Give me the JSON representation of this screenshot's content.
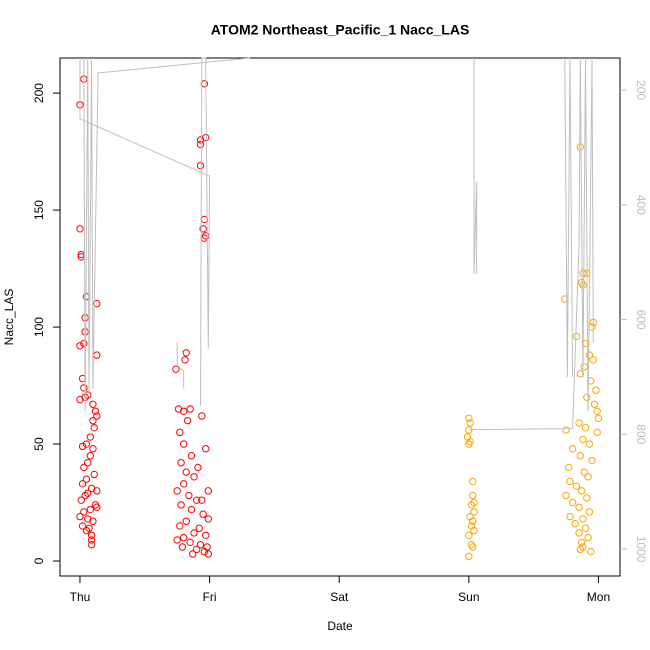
{
  "chart_data": {
    "type": "scatter",
    "title": "ATOM2 Northeast_Pacific_1 Nacc_LAS",
    "xlabel": "Date",
    "ylabel": "Nacc_LAS",
    "xlim": [
      -0.154,
      4.166
    ],
    "xticks": [
      {
        "value": 0,
        "label": "Thu"
      },
      {
        "value": 1,
        "label": "Fri"
      },
      {
        "value": 2,
        "label": "Sat"
      },
      {
        "value": 3,
        "label": "Sun"
      },
      {
        "value": 4,
        "label": "Mon"
      }
    ],
    "ylim": [
      -6.4,
      215
    ],
    "yticks": [
      0,
      50,
      100,
      150,
      200
    ],
    "y2lim": [
      1047,
      144
    ],
    "y2ticks": [
      200,
      400,
      600,
      800,
      1000
    ],
    "y2color": "#bebebe",
    "series": [
      {
        "color": "#ff0000",
        "x": [
          0.0,
          0.01,
          0.01,
          0.0,
          0.03,
          0.05,
          0.13,
          0.04,
          0.04,
          0.03,
          0.0,
          0.13,
          0.02,
          0.03,
          0.04,
          0.0,
          0.06,
          0.1,
          0.12,
          0.13,
          0.1,
          0.11,
          0.08,
          0.05,
          0.02,
          0.1,
          0.08,
          0.06,
          0.03,
          0.11,
          0.05,
          0.02,
          0.09,
          0.13,
          0.06,
          0.04,
          0.01,
          0.12,
          0.08,
          0.03,
          0.0,
          0.06,
          0.1,
          0.02,
          0.05,
          0.09,
          0.09,
          0.09,
          0.07,
          0.13,
          0.82,
          0.81,
          0.74,
          0.93,
          0.93,
          0.96,
          0.97,
          0.93,
          0.96,
          0.95,
          0.97,
          0.96,
          0.94,
          0.97,
          0.76,
          0.8,
          0.85,
          0.83,
          0.77,
          0.8,
          0.86,
          0.78,
          0.82,
          0.88,
          0.8,
          0.75,
          0.84,
          0.9,
          0.78,
          0.86,
          0.95,
          0.99,
          0.82,
          0.77,
          0.92,
          0.88,
          0.97,
          0.8,
          0.75,
          0.85,
          0.93,
          0.98,
          0.9,
          0.96,
          0.87,
          0.99,
          0.79,
          0.94,
          0.91,
          0.99
        ],
        "values": [
          142,
          131,
          130,
          195,
          206,
          113,
          110,
          104,
          98,
          93,
          92,
          88,
          78,
          74,
          70,
          69,
          71,
          67,
          64,
          62,
          60,
          57,
          53,
          50,
          49,
          48,
          45,
          42,
          40,
          37,
          35,
          33,
          31,
          30,
          29,
          28,
          26,
          24,
          22,
          21,
          19,
          18,
          17,
          15,
          13,
          11,
          9,
          7,
          14,
          23,
          89,
          86,
          82,
          180,
          178,
          204,
          181,
          169,
          146,
          142,
          139,
          138,
          62,
          48,
          65,
          64,
          65,
          60,
          55,
          50,
          45,
          42,
          38,
          36,
          33,
          30,
          28,
          26,
          24,
          22,
          20,
          18,
          17,
          15,
          14,
          12,
          11,
          10,
          9,
          8,
          7,
          6,
          5,
          4,
          3,
          3,
          6,
          26,
          40,
          30
        ]
      },
      {
        "color": "#ffa500",
        "x": [
          3.0,
          3.01,
          3.0,
          2.99,
          3.01,
          3.03,
          3.03,
          3.02,
          3.04,
          3.01,
          3.03,
          3.02,
          3.04,
          3.0,
          3.02,
          3.03,
          3.0,
          3.04,
          3.0,
          3.86,
          3.88,
          3.91,
          3.87,
          3.88,
          3.74,
          3.96,
          3.95,
          3.83,
          3.9,
          3.93,
          3.96,
          3.89,
          3.86,
          3.94,
          3.98,
          3.91,
          3.97,
          3.99,
          4.0,
          3.85,
          3.9,
          3.75,
          3.99,
          3.88,
          3.93,
          3.8,
          3.86,
          3.95,
          3.77,
          3.89,
          3.92,
          3.78,
          3.83,
          3.87,
          3.75,
          3.91,
          3.8,
          3.85,
          3.93,
          3.78,
          3.88,
          3.82,
          3.9,
          3.85,
          3.92,
          3.87,
          3.88,
          3.94,
          3.86
        ],
        "values": [
          61,
          59,
          56,
          53,
          51,
          34,
          28,
          24,
          21,
          19,
          17,
          15,
          13,
          11,
          7,
          6,
          2,
          25,
          50,
          177,
          123,
          123,
          119,
          118,
          112,
          102,
          100,
          96,
          93,
          88,
          86,
          83,
          80,
          77,
          73,
          70,
          67,
          64,
          61,
          59,
          57,
          56,
          55,
          52,
          50,
          48,
          45,
          43,
          40,
          38,
          36,
          34,
          32,
          30,
          28,
          27,
          25,
          23,
          21,
          19,
          18,
          16,
          14,
          12,
          10,
          8,
          6,
          4,
          5
        ]
      },
      {
        "type": "line",
        "axis": "y2",
        "color": "#bebebe",
        "x": [
          0.0,
          0.0,
          1.0,
          0.99,
          0.97,
          0.94,
          0.93,
          null,
          0.75,
          0.75,
          0.8,
          0.8,
          null,
          0.03,
          0.04,
          0.06,
          0.07,
          0.09,
          0.1,
          0.14,
          1.31,
          null,
          3.04,
          3.04,
          3.06,
          3.06,
          null,
          3.0,
          3.8,
          3.85,
          3.86,
          3.88,
          3.9,
          3.92,
          3.95,
          3.96,
          null,
          3.74,
          3.76,
          3.78,
          3.8
        ],
        "values": [
          144,
          250,
          350,
          650,
          144,
          144,
          750,
          null,
          640,
          680,
          690,
          720,
          null,
          144,
          760,
          144,
          730,
          144,
          720,
          170,
          144,
          null,
          144,
          520,
          360,
          520,
          null,
          792,
          790,
          470,
          144,
          700,
          144,
          760,
          144,
          640,
          null,
          144,
          700,
          144,
          700
        ]
      }
    ]
  }
}
